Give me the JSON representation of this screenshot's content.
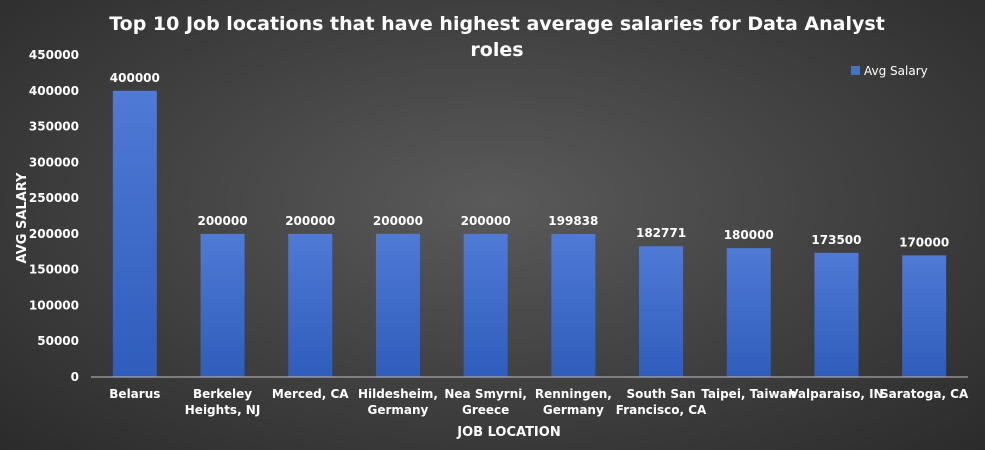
{
  "chart_data": {
    "type": "bar",
    "title_lines": [
      "Top 10 Job locations that have highest average salaries for Data Analyst",
      "roles"
    ],
    "xlabel": "JOB LOCATION",
    "ylabel": "AVG SALARY",
    "categories": [
      [
        "Belarus"
      ],
      [
        "Berkeley",
        "Heights, NJ"
      ],
      [
        "Merced, CA"
      ],
      [
        "Hildesheim,",
        "Germany"
      ],
      [
        "Nea Smyrni,",
        "Greece"
      ],
      [
        "Renningen,",
        "Germany"
      ],
      [
        "South San",
        "Francisco, CA"
      ],
      [
        "Taipei, Taiwan"
      ],
      [
        "Valparaiso, IN"
      ],
      [
        "Saratoga, CA"
      ]
    ],
    "series": [
      {
        "name": "Avg Salary",
        "values": [
          400000,
          200000,
          200000,
          200000,
          200000,
          199838,
          182771,
          180000,
          173500,
          170000
        ],
        "color": "#4472c4"
      }
    ],
    "ylim": [
      0,
      450000
    ],
    "yticks": [
      0,
      50000,
      100000,
      150000,
      200000,
      250000,
      300000,
      350000,
      400000,
      450000
    ],
    "grid": false,
    "legend_position": "top-right",
    "colors": {
      "bar_top": "#4f7ad6",
      "bar_bottom": "#2f5dbb",
      "axis": "#bfbfbf",
      "text": "#ffffff"
    }
  }
}
